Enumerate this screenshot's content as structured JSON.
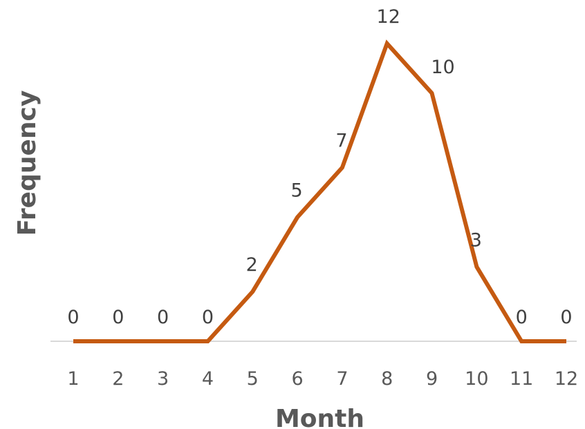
{
  "chart_data": {
    "type": "line",
    "title": "",
    "xlabel": "Month",
    "ylabel": "Frequency",
    "categories": [
      "1",
      "2",
      "3",
      "4",
      "5",
      "6",
      "7",
      "8",
      "9",
      "10",
      "11",
      "12"
    ],
    "series": [
      {
        "values": [
          0,
          0,
          0,
          0,
          2,
          5,
          7,
          12,
          10,
          3,
          0,
          0
        ],
        "color": "#C55A11"
      }
    ],
    "ylim": [
      0,
      12
    ],
    "data_labels": true,
    "grid": false,
    "legend": "none",
    "axis_color": "#D9D9D9"
  }
}
